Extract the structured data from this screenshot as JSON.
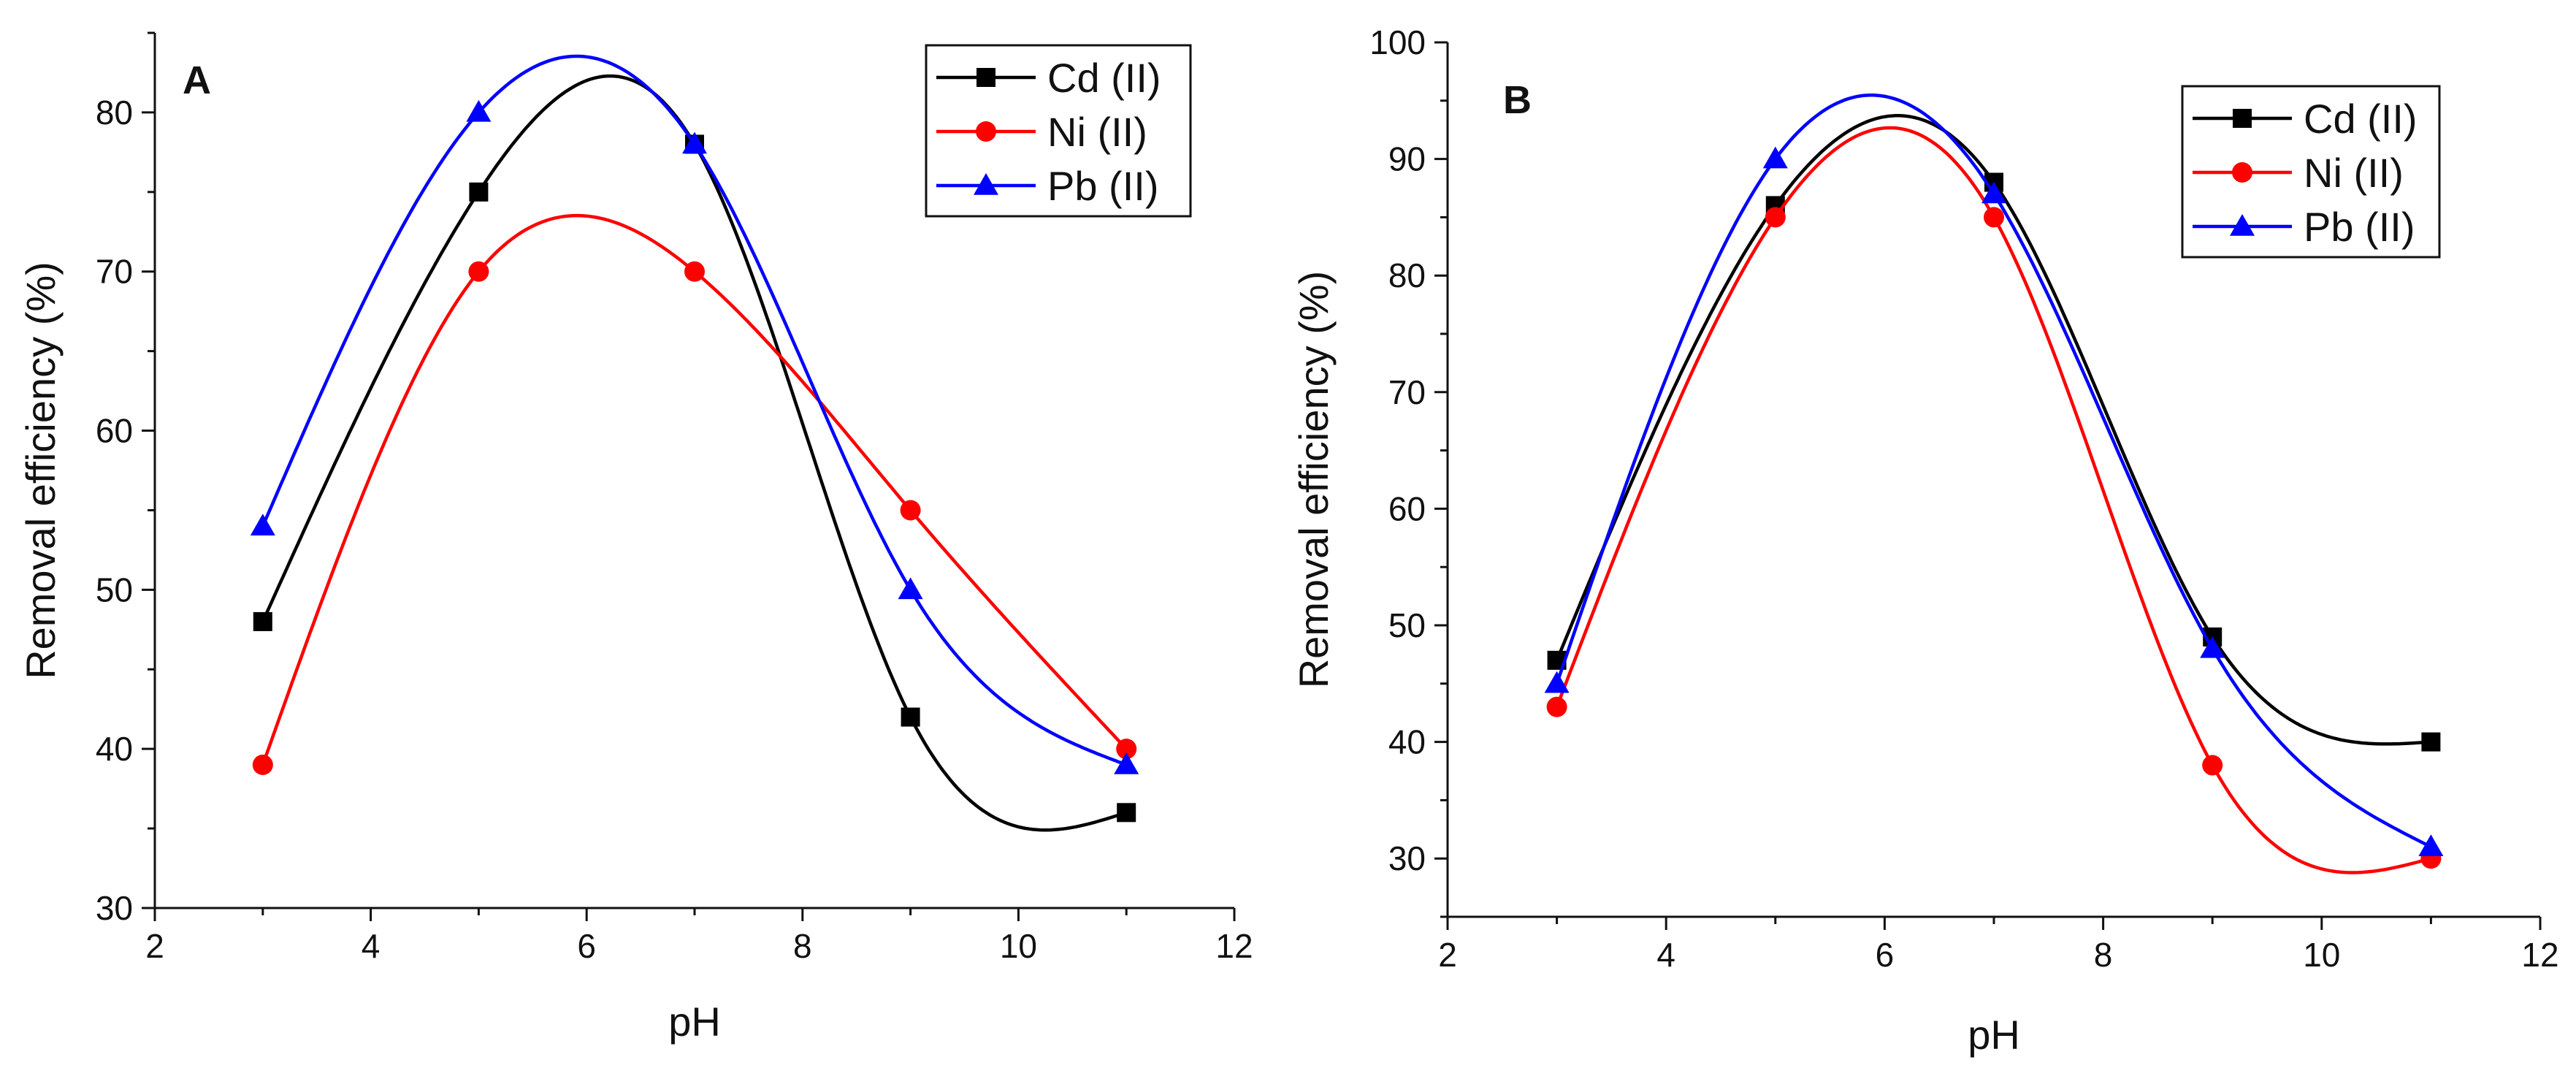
{
  "chart_data": [
    {
      "type": "line",
      "panel_label": "A",
      "xlabel": "pH",
      "ylabel": "Removal efficiency (%)",
      "xlim": [
        2,
        12
      ],
      "ylim": [
        30,
        85
      ],
      "xticks": [
        2,
        4,
        6,
        8,
        10,
        12
      ],
      "yticks": [
        30,
        40,
        50,
        60,
        70,
        80
      ],
      "grid": false,
      "legend_position": "top-right",
      "x": [
        3,
        5,
        7,
        9,
        11
      ],
      "series": [
        {
          "name": "Cd (II)",
          "color": "#000000",
          "marker": "square",
          "values": [
            48,
            75,
            78,
            42,
            36
          ]
        },
        {
          "name": "Ni (II)",
          "color": "#ff0000",
          "marker": "circle",
          "values": [
            39,
            70,
            70,
            55,
            40
          ]
        },
        {
          "name": "Pb (II)",
          "color": "#0000ff",
          "marker": "triangle",
          "values": [
            54,
            80,
            78,
            50,
            39
          ]
        }
      ]
    },
    {
      "type": "line",
      "panel_label": "B",
      "xlabel": "pH",
      "ylabel": "Removal efficiency (%)",
      "xlim": [
        2,
        12
      ],
      "ylim": [
        25,
        100
      ],
      "xticks": [
        2,
        4,
        6,
        8,
        10,
        12
      ],
      "yticks": [
        30,
        40,
        50,
        60,
        70,
        80,
        90,
        100
      ],
      "grid": false,
      "legend_position": "top-right",
      "x": [
        3,
        5,
        7,
        9,
        11
      ],
      "series": [
        {
          "name": "Cd (II)",
          "color": "#000000",
          "marker": "square",
          "values": [
            47,
            86,
            88,
            49,
            40
          ]
        },
        {
          "name": "Ni (II)",
          "color": "#ff0000",
          "marker": "circle",
          "values": [
            43,
            85,
            85,
            38,
            30
          ]
        },
        {
          "name": "Pb (II)",
          "color": "#0000ff",
          "marker": "triangle",
          "values": [
            45,
            90,
            87,
            48,
            31
          ]
        }
      ]
    }
  ]
}
